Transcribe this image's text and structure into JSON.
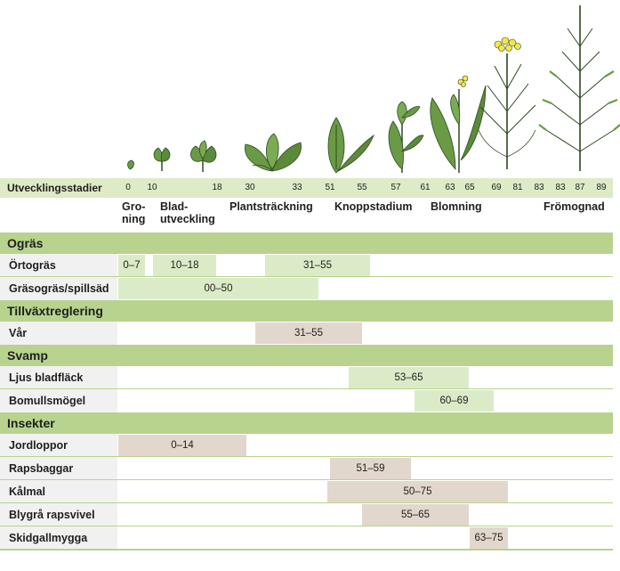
{
  "axis": {
    "label": "Utvecklingsstadier",
    "ticks": [
      "0",
      "10",
      "18",
      "30",
      "33",
      "51",
      "55",
      "57",
      "61",
      "63",
      "65",
      "69",
      "81",
      "83",
      "83",
      "87",
      "89"
    ]
  },
  "phases": [
    {
      "line1": "Gro-",
      "line2": "ning"
    },
    {
      "line1": "Blad-",
      "line2": "utveckling"
    },
    {
      "line1": "Plantsträckning",
      "line2": ""
    },
    {
      "line1": "Knoppstadium",
      "line2": ""
    },
    {
      "line1": "Blomning",
      "line2": ""
    },
    {
      "line1": "Frömognad",
      "line2": ""
    }
  ],
  "colors": {
    "header_green": "#b7d38e",
    "axis_green": "#ddebc6",
    "bar_green": "#dcebc7",
    "bar_tan": "#e2d7cc",
    "label_bg": "#f1f1f1",
    "plant_dark": "#2d4a22",
    "plant_mid": "#6a9a45",
    "flower_yellow": "#f2e64a"
  },
  "chart_data": {
    "type": "gantt",
    "title": "",
    "xlabel": "Utvecklingsstadier",
    "sections": [
      {
        "name": "Ogräs",
        "rows": [
          {
            "label": "Örtogräs",
            "bars": [
              {
                "text": "0–7",
                "start": 0,
                "end": 7,
                "color": "green"
              },
              {
                "text": "10–18",
                "start": 10,
                "end": 18,
                "color": "green"
              },
              {
                "text": "31–55",
                "start": 31,
                "end": 55,
                "color": "green"
              }
            ]
          },
          {
            "label": "Gräsogräs/spillsäd",
            "bars": [
              {
                "text": "00–50",
                "start": 0,
                "end": 50,
                "color": "green"
              }
            ]
          }
        ]
      },
      {
        "name": "Tillväxtreglering",
        "rows": [
          {
            "label": "Vår",
            "bars": [
              {
                "text": "31–55",
                "start": 31,
                "end": 55,
                "color": "tan"
              }
            ]
          }
        ]
      },
      {
        "name": "Svamp",
        "rows": [
          {
            "label": "Ljus bladfläck",
            "bars": [
              {
                "text": "53–65",
                "start": 53,
                "end": 65,
                "color": "green"
              }
            ]
          },
          {
            "label": "Bomullsmögel",
            "bars": [
              {
                "text": "60–69",
                "start": 60,
                "end": 69,
                "color": "green"
              }
            ]
          }
        ]
      },
      {
        "name": "Insekter",
        "rows": [
          {
            "label": "Jordloppor",
            "bars": [
              {
                "text": "0–14",
                "start": 0,
                "end": 14,
                "color": "tan"
              }
            ]
          },
          {
            "label": "Rapsbaggar",
            "bars": [
              {
                "text": "51–59",
                "start": 51,
                "end": 59,
                "color": "tan"
              }
            ]
          },
          {
            "label": "Kålmal",
            "bars": [
              {
                "text": "50–75",
                "start": 50,
                "end": 75,
                "color": "tan"
              }
            ]
          },
          {
            "label": "Blygrå rapsvivel",
            "bars": [
              {
                "text": "55–65",
                "start": 55,
                "end": 65,
                "color": "tan"
              }
            ]
          },
          {
            "label": "Skidgallmygga",
            "bars": [
              {
                "text": "63–75",
                "start": 63,
                "end": 75,
                "color": "tan"
              }
            ]
          }
        ]
      }
    ]
  }
}
